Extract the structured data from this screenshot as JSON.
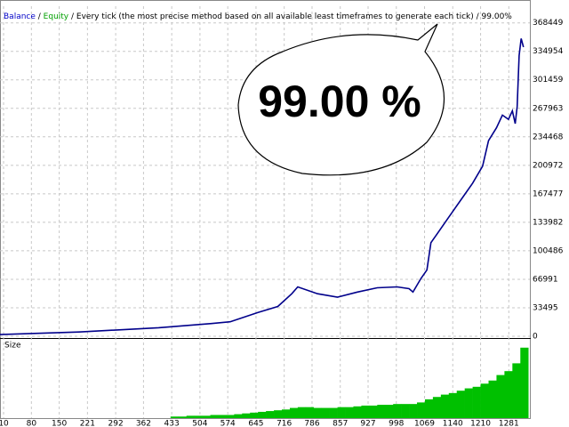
{
  "chart_data": [
    {
      "type": "line",
      "legend": [
        {
          "name": "Balance",
          "color": "#0000c8"
        },
        {
          "name": "Equity",
          "color": "#00a000"
        }
      ],
      "separator": " / ",
      "subtitle": "Every tick (the most precise method based on all available least timeframes to generate each tick)",
      "quality": "99.00%",
      "annotation": "99.00 %",
      "series": [
        {
          "name": "Balance",
          "color": "#00008b",
          "x": [
            1,
            200,
            400,
            533,
            580,
            650,
            700,
            735,
            750,
            800,
            850,
            900,
            950,
            1000,
            1030,
            1040,
            1060,
            1075,
            1085,
            1100,
            1130,
            1160,
            1190,
            1215,
            1230,
            1250,
            1265,
            1280,
            1290,
            1297,
            1302,
            1307,
            1312,
            1318
          ],
          "values": [
            2000,
            5000,
            10000,
            15000,
            17000,
            28000,
            35000,
            50000,
            58000,
            50000,
            46000,
            52000,
            57000,
            58000,
            56000,
            52000,
            68000,
            78000,
            110000,
            120000,
            140000,
            160000,
            180000,
            200000,
            230000,
            245000,
            260000,
            255000,
            265000,
            250000,
            270000,
            330000,
            350000,
            340000
          ]
        }
      ],
      "xlim": [
        1,
        1334
      ],
      "ylim": [
        0,
        388000
      ],
      "yticks": [
        0,
        33495,
        66991,
        100486,
        133982,
        167477,
        200972,
        234468,
        267963,
        301459,
        334954,
        368449
      ],
      "grid": true
    },
    {
      "type": "bar",
      "title": "Size",
      "color": "#00c000",
      "x": [
        440,
        460,
        480,
        500,
        520,
        540,
        560,
        580,
        600,
        620,
        640,
        660,
        680,
        700,
        720,
        740,
        760,
        780,
        800,
        820,
        840,
        860,
        880,
        900,
        920,
        940,
        960,
        980,
        1000,
        1020,
        1040,
        1060,
        1080,
        1100,
        1120,
        1140,
        1160,
        1180,
        1200,
        1220,
        1240,
        1260,
        1280,
        1300,
        1320
      ],
      "values": [
        2,
        2,
        3,
        3,
        3,
        4,
        4,
        4,
        5,
        6,
        7,
        8,
        9,
        10,
        11,
        13,
        14,
        14,
        13,
        13,
        13,
        14,
        14,
        15,
        16,
        16,
        17,
        17,
        18,
        18,
        18,
        20,
        24,
        27,
        30,
        32,
        35,
        38,
        40,
        44,
        48,
        55,
        60,
        70,
        90
      ],
      "xlim": [
        1,
        1334
      ],
      "ylim": [
        0,
        100
      ],
      "xticks": [
        10,
        80,
        150,
        221,
        292,
        362,
        433,
        504,
        574,
        645,
        716,
        786,
        857,
        927,
        998,
        1069,
        1140,
        1210,
        1281
      ],
      "grid": true
    }
  ]
}
